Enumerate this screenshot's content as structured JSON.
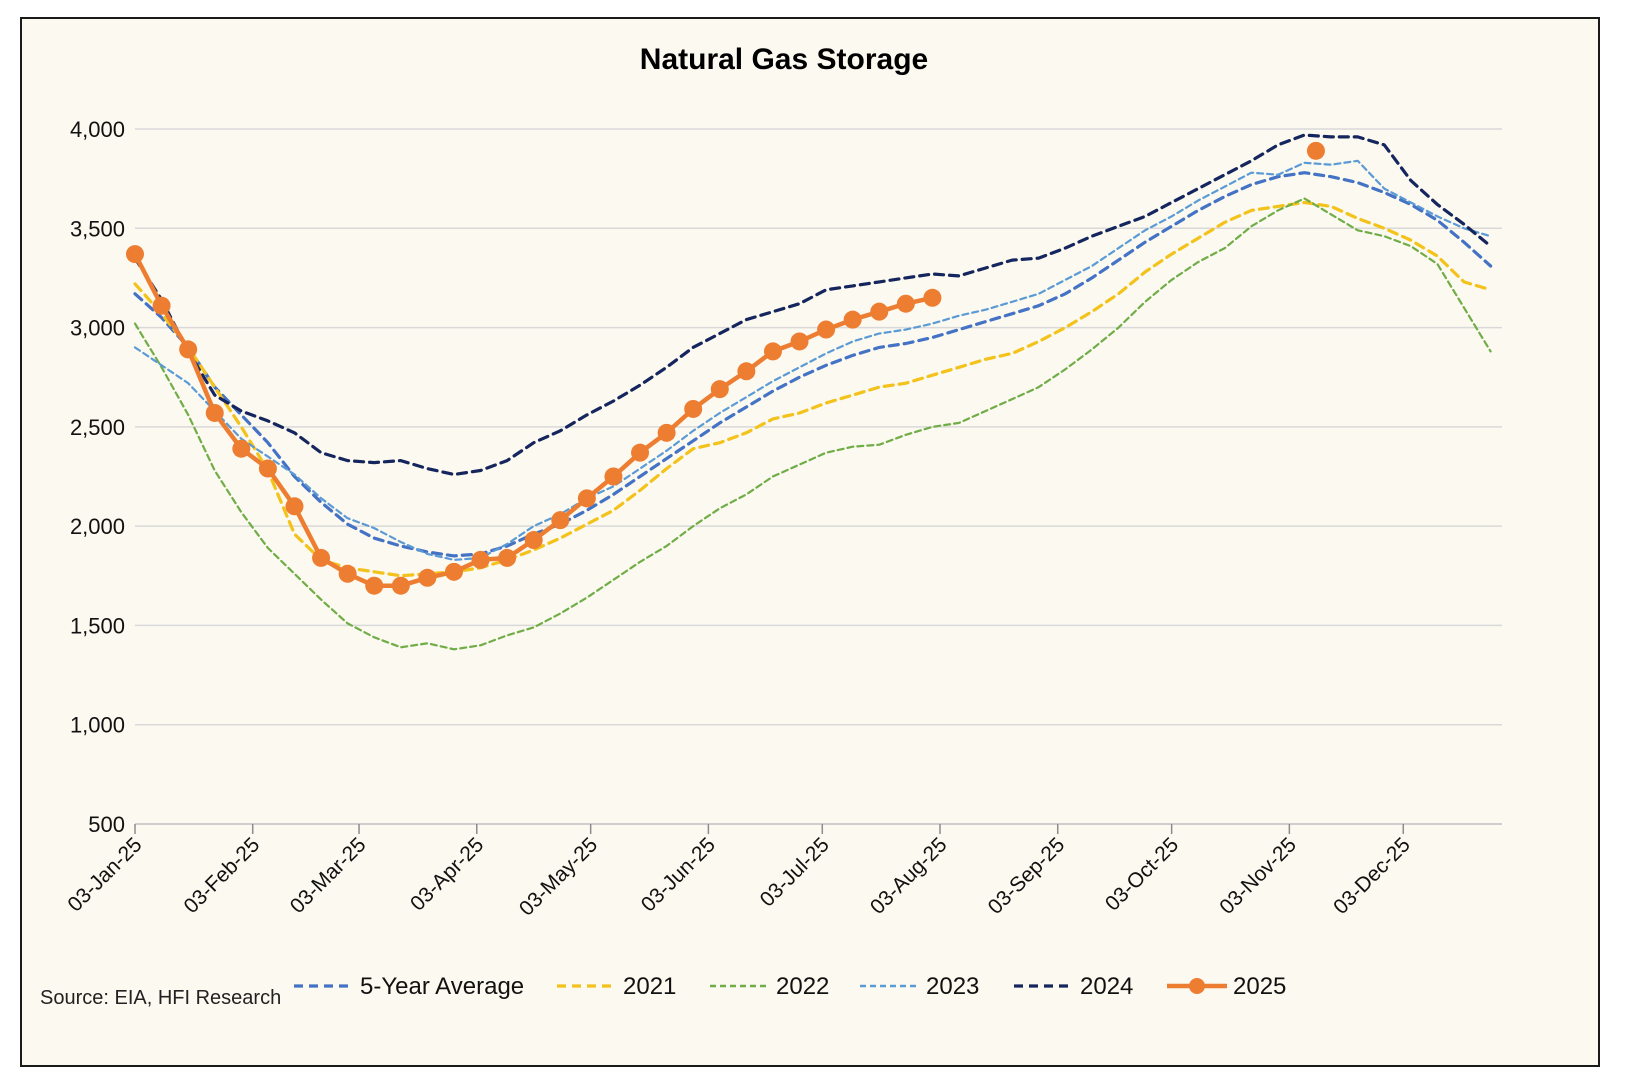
{
  "chart_data": {
    "type": "line",
    "title": "Natural Gas Storage",
    "xlabel": "",
    "ylabel": "",
    "source": "Source: EIA, HFI Research",
    "ylim": [
      500,
      4000
    ],
    "yticks": [
      500,
      1000,
      1500,
      2000,
      2500,
      3000,
      3500,
      4000
    ],
    "ytick_labels": [
      "500",
      "1,000",
      "1,500",
      "2,000",
      "2,500",
      "3,000",
      "3,500",
      "4,000"
    ],
    "xlim": [
      "2025-01-03",
      "2025-12-29"
    ],
    "xticks": [
      "2025-01-03",
      "2025-02-03",
      "2025-03-03",
      "2025-04-03",
      "2025-05-03",
      "2025-06-03",
      "2025-07-03",
      "2025-08-03",
      "2025-09-03",
      "2025-10-03",
      "2025-11-03",
      "2025-12-03"
    ],
    "xtick_labels": [
      "03-Jan-25",
      "03-Feb-25",
      "03-Mar-25",
      "03-Apr-25",
      "03-May-25",
      "03-Jun-25",
      "03-Jul-25",
      "03-Aug-25",
      "03-Sep-25",
      "03-Oct-25",
      "03-Nov-25",
      "03-Dec-25"
    ],
    "grid": "horizontal",
    "legend_position": "bottom",
    "series": [
      {
        "name": "5-Year Average",
        "color": "#4472c4",
        "style": "dashed-bold",
        "x": [
          "2025-01-03",
          "2025-01-10",
          "2025-01-17",
          "2025-01-24",
          "2025-01-31",
          "2025-02-07",
          "2025-02-14",
          "2025-02-21",
          "2025-02-28",
          "2025-03-07",
          "2025-03-14",
          "2025-03-21",
          "2025-03-28",
          "2025-04-04",
          "2025-04-11",
          "2025-04-18",
          "2025-04-25",
          "2025-05-02",
          "2025-05-09",
          "2025-05-16",
          "2025-05-23",
          "2025-05-30",
          "2025-06-06",
          "2025-06-13",
          "2025-06-20",
          "2025-06-27",
          "2025-07-04",
          "2025-07-11",
          "2025-07-18",
          "2025-07-25",
          "2025-08-01",
          "2025-08-08",
          "2025-08-15",
          "2025-08-22",
          "2025-08-29",
          "2025-09-05",
          "2025-09-12",
          "2025-09-19",
          "2025-09-26",
          "2025-10-03",
          "2025-10-10",
          "2025-10-17",
          "2025-10-24",
          "2025-10-31",
          "2025-11-07",
          "2025-11-14",
          "2025-11-21",
          "2025-11-28",
          "2025-12-05",
          "2025-12-12",
          "2025-12-19",
          "2025-12-26"
        ],
        "values": [
          3170,
          3050,
          2900,
          2700,
          2560,
          2420,
          2250,
          2120,
          2010,
          1940,
          1900,
          1870,
          1850,
          1860,
          1900,
          1960,
          2010,
          2080,
          2160,
          2250,
          2340,
          2430,
          2520,
          2600,
          2680,
          2750,
          2810,
          2860,
          2900,
          2920,
          2950,
          2990,
          3030,
          3070,
          3110,
          3170,
          3250,
          3340,
          3430,
          3510,
          3590,
          3660,
          3720,
          3760,
          3780,
          3760,
          3730,
          3680,
          3620,
          3540,
          3430,
          3310
        ]
      },
      {
        "name": "2021",
        "color": "#f3c21b",
        "style": "dashed-bold",
        "x": [
          "2025-01-03",
          "2025-01-10",
          "2025-01-17",
          "2025-01-24",
          "2025-01-31",
          "2025-02-07",
          "2025-02-14",
          "2025-02-21",
          "2025-02-28",
          "2025-03-07",
          "2025-03-14",
          "2025-03-21",
          "2025-03-28",
          "2025-04-04",
          "2025-04-11",
          "2025-04-18",
          "2025-04-25",
          "2025-05-02",
          "2025-05-09",
          "2025-05-16",
          "2025-05-23",
          "2025-05-30",
          "2025-06-06",
          "2025-06-13",
          "2025-06-20",
          "2025-06-27",
          "2025-07-04",
          "2025-07-11",
          "2025-07-18",
          "2025-07-25",
          "2025-08-01",
          "2025-08-08",
          "2025-08-15",
          "2025-08-22",
          "2025-08-29",
          "2025-09-05",
          "2025-09-12",
          "2025-09-19",
          "2025-09-26",
          "2025-10-03",
          "2025-10-10",
          "2025-10-17",
          "2025-10-24",
          "2025-10-31",
          "2025-11-07",
          "2025-11-14",
          "2025-11-21",
          "2025-11-28",
          "2025-12-05",
          "2025-12-12",
          "2025-12-19",
          "2025-12-26"
        ],
        "values": [
          3220,
          3070,
          2900,
          2700,
          2500,
          2280,
          1960,
          1830,
          1790,
          1770,
          1750,
          1760,
          1770,
          1790,
          1830,
          1880,
          1940,
          2010,
          2080,
          2180,
          2290,
          2390,
          2420,
          2470,
          2540,
          2570,
          2620,
          2660,
          2700,
          2720,
          2760,
          2800,
          2840,
          2870,
          2930,
          3000,
          3080,
          3170,
          3280,
          3370,
          3450,
          3530,
          3590,
          3610,
          3630,
          3610,
          3550,
          3500,
          3440,
          3360,
          3230,
          3190
        ]
      },
      {
        "name": "2022",
        "color": "#70ad47",
        "style": "dashed-thin",
        "x": [
          "2025-01-03",
          "2025-01-10",
          "2025-01-17",
          "2025-01-24",
          "2025-01-31",
          "2025-02-07",
          "2025-02-14",
          "2025-02-21",
          "2025-02-28",
          "2025-03-07",
          "2025-03-14",
          "2025-03-21",
          "2025-03-28",
          "2025-04-04",
          "2025-04-11",
          "2025-04-18",
          "2025-04-25",
          "2025-05-02",
          "2025-05-09",
          "2025-05-16",
          "2025-05-23",
          "2025-05-30",
          "2025-06-06",
          "2025-06-13",
          "2025-06-20",
          "2025-06-27",
          "2025-07-04",
          "2025-07-11",
          "2025-07-18",
          "2025-07-25",
          "2025-08-01",
          "2025-08-08",
          "2025-08-15",
          "2025-08-22",
          "2025-08-29",
          "2025-09-05",
          "2025-09-12",
          "2025-09-19",
          "2025-09-26",
          "2025-10-03",
          "2025-10-10",
          "2025-10-17",
          "2025-10-24",
          "2025-10-31",
          "2025-11-07",
          "2025-11-14",
          "2025-11-21",
          "2025-11-28",
          "2025-12-05",
          "2025-12-12",
          "2025-12-19",
          "2025-12-26"
        ],
        "values": [
          3020,
          2800,
          2560,
          2280,
          2070,
          1890,
          1760,
          1630,
          1510,
          1440,
          1390,
          1410,
          1380,
          1400,
          1450,
          1490,
          1560,
          1640,
          1730,
          1820,
          1900,
          2000,
          2090,
          2160,
          2250,
          2310,
          2370,
          2400,
          2410,
          2460,
          2500,
          2520,
          2580,
          2640,
          2700,
          2790,
          2890,
          3000,
          3130,
          3240,
          3330,
          3400,
          3510,
          3590,
          3650,
          3570,
          3490,
          3460,
          3410,
          3320,
          3100,
          2880
        ]
      },
      {
        "name": "2023",
        "color": "#5b9bd5",
        "style": "dashed-thin",
        "x": [
          "2025-01-03",
          "2025-01-10",
          "2025-01-17",
          "2025-01-24",
          "2025-01-31",
          "2025-02-07",
          "2025-02-14",
          "2025-02-21",
          "2025-02-28",
          "2025-03-07",
          "2025-03-14",
          "2025-03-21",
          "2025-03-28",
          "2025-04-04",
          "2025-04-11",
          "2025-04-18",
          "2025-04-25",
          "2025-05-02",
          "2025-05-09",
          "2025-05-16",
          "2025-05-23",
          "2025-05-30",
          "2025-06-06",
          "2025-06-13",
          "2025-06-20",
          "2025-06-27",
          "2025-07-04",
          "2025-07-11",
          "2025-07-18",
          "2025-07-25",
          "2025-08-01",
          "2025-08-08",
          "2025-08-15",
          "2025-08-22",
          "2025-08-29",
          "2025-09-05",
          "2025-09-12",
          "2025-09-19",
          "2025-09-26",
          "2025-10-03",
          "2025-10-10",
          "2025-10-17",
          "2025-10-24",
          "2025-10-31",
          "2025-11-07",
          "2025-11-14",
          "2025-11-21",
          "2025-11-28",
          "2025-12-05",
          "2025-12-12",
          "2025-12-19",
          "2025-12-26"
        ],
        "values": [
          2900,
          2810,
          2720,
          2580,
          2440,
          2350,
          2260,
          2140,
          2040,
          1990,
          1920,
          1860,
          1830,
          1840,
          1910,
          2000,
          2060,
          2140,
          2200,
          2290,
          2380,
          2480,
          2570,
          2650,
          2730,
          2800,
          2870,
          2930,
          2970,
          2990,
          3020,
          3060,
          3090,
          3130,
          3170,
          3240,
          3310,
          3400,
          3490,
          3560,
          3640,
          3710,
          3780,
          3770,
          3830,
          3820,
          3840,
          3700,
          3630,
          3560,
          3500,
          3460
        ]
      },
      {
        "name": "2024",
        "color": "#15265e",
        "style": "dashed-bold",
        "x": [
          "2025-01-03",
          "2025-01-10",
          "2025-01-17",
          "2025-01-24",
          "2025-01-31",
          "2025-02-07",
          "2025-02-14",
          "2025-02-21",
          "2025-02-28",
          "2025-03-07",
          "2025-03-14",
          "2025-03-21",
          "2025-03-28",
          "2025-04-04",
          "2025-04-11",
          "2025-04-18",
          "2025-04-25",
          "2025-05-02",
          "2025-05-09",
          "2025-05-16",
          "2025-05-23",
          "2025-05-30",
          "2025-06-06",
          "2025-06-13",
          "2025-06-20",
          "2025-06-27",
          "2025-07-04",
          "2025-07-11",
          "2025-07-18",
          "2025-07-25",
          "2025-08-01",
          "2025-08-08",
          "2025-08-15",
          "2025-08-22",
          "2025-08-29",
          "2025-09-05",
          "2025-09-12",
          "2025-09-19",
          "2025-09-26",
          "2025-10-03",
          "2025-10-10",
          "2025-10-17",
          "2025-10-24",
          "2025-10-31",
          "2025-11-07",
          "2025-11-14",
          "2025-11-21",
          "2025-11-28",
          "2025-12-05",
          "2025-12-12",
          "2025-12-19",
          "2025-12-26"
        ],
        "values": [
          3350,
          3140,
          2880,
          2660,
          2580,
          2530,
          2470,
          2370,
          2330,
          2320,
          2330,
          2290,
          2260,
          2280,
          2330,
          2420,
          2480,
          2560,
          2630,
          2710,
          2800,
          2900,
          2970,
          3040,
          3080,
          3120,
          3190,
          3210,
          3230,
          3250,
          3270,
          3260,
          3300,
          3340,
          3350,
          3400,
          3460,
          3510,
          3560,
          3630,
          3700,
          3770,
          3840,
          3920,
          3970,
          3960,
          3960,
          3920,
          3740,
          3620,
          3520,
          3410
        ]
      },
      {
        "name": "2025",
        "color": "#ed7d31",
        "style": "solid-markers",
        "x": [
          "2025-01-03",
          "2025-01-10",
          "2025-01-17",
          "2025-01-24",
          "2025-01-31",
          "2025-02-07",
          "2025-02-14",
          "2025-02-21",
          "2025-02-28",
          "2025-03-07",
          "2025-03-14",
          "2025-03-21",
          "2025-03-28",
          "2025-04-04",
          "2025-04-11",
          "2025-04-18",
          "2025-04-25",
          "2025-05-02",
          "2025-05-09",
          "2025-05-16",
          "2025-05-23",
          "2025-05-30",
          "2025-06-06",
          "2025-06-13",
          "2025-06-20",
          "2025-06-27",
          "2025-07-04",
          "2025-07-11",
          "2025-07-18",
          "2025-07-25",
          "2025-08-01"
        ],
        "values": [
          3370,
          3110,
          2890,
          2570,
          2390,
          2290,
          2100,
          1840,
          1760,
          1700,
          1700,
          1740,
          1770,
          1830,
          1840,
          1930,
          2030,
          2140,
          2250,
          2370,
          2470,
          2590,
          2690,
          2780,
          2880,
          2930,
          2990,
          3040,
          3080,
          3120,
          3150
        ]
      },
      {
        "name": "",
        "color": "#ed7d31",
        "style": "single-marker",
        "x": [
          "2025-11-10"
        ],
        "values": [
          3890
        ]
      }
    ]
  }
}
